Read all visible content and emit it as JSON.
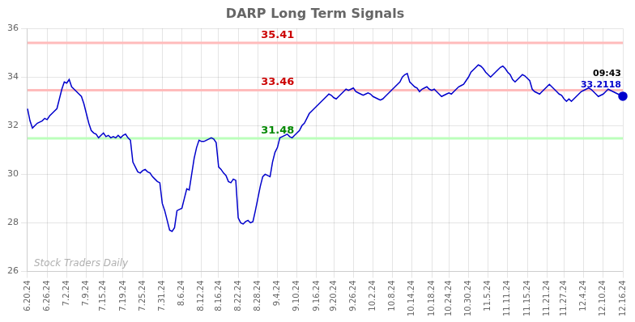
{
  "chart_data": {
    "type": "line",
    "title": "DARP Long Term Signals",
    "categories": [
      "6.20.24",
      null,
      null,
      null,
      null,
      null,
      null,
      null,
      "6.26.24",
      null,
      null,
      null,
      null,
      null,
      null,
      null,
      "7.2.24",
      null,
      null,
      null,
      null,
      null,
      null,
      null,
      "7.9.24",
      null,
      null,
      null,
      null,
      null,
      null,
      "7.15.24",
      null,
      null,
      null,
      null,
      null,
      null,
      null,
      "7.19.24",
      null,
      null,
      null,
      null,
      null,
      null,
      null,
      "7.25.24",
      null,
      null,
      null,
      null,
      null,
      null,
      null,
      "7.31.24",
      null,
      null,
      null,
      null,
      null,
      null,
      null,
      "8.6.24",
      null,
      null,
      null,
      null,
      null,
      null,
      null,
      "8.12.24",
      null,
      null,
      null,
      null,
      null,
      null,
      "8.16.24",
      null,
      null,
      null,
      null,
      null,
      null,
      null,
      "8.22.24",
      null,
      null,
      null,
      null,
      null,
      null,
      null,
      "8.28.24",
      null,
      null,
      null,
      null,
      null,
      null,
      null,
      "9.4.24",
      null,
      null,
      null,
      null,
      null,
      null,
      null,
      "9.10.24",
      null,
      null,
      null,
      null,
      null,
      null,
      null,
      "9.16.24",
      null,
      null,
      null,
      null,
      null,
      null,
      "9.20.24",
      null,
      null,
      null,
      null,
      null,
      null,
      null,
      "9.26.24",
      null,
      null,
      null,
      null,
      null,
      null,
      null,
      "10.2.24",
      null,
      null,
      null,
      null,
      null,
      null,
      null,
      "10.8.24",
      null,
      null,
      null,
      null,
      null,
      null,
      null,
      "10.14.24",
      null,
      null,
      null,
      null,
      null,
      null,
      null,
      "10.18.24",
      null,
      null,
      null,
      null,
      null,
      null,
      "10.24.24",
      null,
      null,
      null,
      null,
      null,
      null,
      null,
      "10.30.24",
      null,
      null,
      null,
      null,
      null,
      null,
      null,
      "11.5.24",
      null,
      null,
      null,
      null,
      null,
      null,
      null,
      "11.11.24",
      null,
      null,
      null,
      null,
      null,
      null,
      null,
      "11.15.24",
      null,
      null,
      null,
      null,
      null,
      null,
      null,
      "11.21.24",
      null,
      null,
      null,
      null,
      null,
      null,
      "11.27.24",
      null,
      null,
      null,
      null,
      null,
      null,
      null,
      "12.4.24",
      null,
      null,
      null,
      null,
      null,
      null,
      null,
      "12.10.24",
      null,
      null,
      null,
      null,
      null,
      null,
      null,
      "12.16.24"
    ],
    "series": [
      {
        "color": "#0000cc",
        "values": [
          32.7,
          32.2,
          31.9,
          32.0,
          32.1,
          32.15,
          32.2,
          32.3,
          32.25,
          32.4,
          32.5,
          32.6,
          32.7,
          33.1,
          33.5,
          33.8,
          33.75,
          33.9,
          33.6,
          33.5,
          33.4,
          33.3,
          33.2,
          32.9,
          32.5,
          32.1,
          31.8,
          31.7,
          31.65,
          31.5,
          31.6,
          31.7,
          31.55,
          31.6,
          31.5,
          31.55,
          31.5,
          31.6,
          31.5,
          31.6,
          31.65,
          31.5,
          31.4,
          30.5,
          30.3,
          30.1,
          30.05,
          30.15,
          30.2,
          30.1,
          30.05,
          29.9,
          29.8,
          29.7,
          29.65,
          28.8,
          28.5,
          28.1,
          27.7,
          27.65,
          27.8,
          28.5,
          28.55,
          28.6,
          29.0,
          29.4,
          29.35,
          30.0,
          30.65,
          31.1,
          31.4,
          31.35,
          31.35,
          31.4,
          31.45,
          31.5,
          31.45,
          31.3,
          30.3,
          30.2,
          30.05,
          29.95,
          29.7,
          29.65,
          29.8,
          29.75,
          28.2,
          28.0,
          27.95,
          28.05,
          28.1,
          28.0,
          28.05,
          28.5,
          29.0,
          29.5,
          29.9,
          30.0,
          29.95,
          29.9,
          30.5,
          30.9,
          31.1,
          31.5,
          31.55,
          31.6,
          31.65,
          31.55,
          31.5,
          31.6,
          31.7,
          31.8,
          32.0,
          32.1,
          32.3,
          32.5,
          32.6,
          32.7,
          32.8,
          32.9,
          33.0,
          33.1,
          33.2,
          33.3,
          33.25,
          33.15,
          33.1,
          33.2,
          33.3,
          33.4,
          33.5,
          33.45,
          33.5,
          33.55,
          33.4,
          33.35,
          33.3,
          33.25,
          33.3,
          33.35,
          33.3,
          33.2,
          33.15,
          33.1,
          33.05,
          33.1,
          33.2,
          33.3,
          33.4,
          33.5,
          33.6,
          33.7,
          33.8,
          34.0,
          34.1,
          34.15,
          33.8,
          33.7,
          33.6,
          33.55,
          33.4,
          33.5,
          33.55,
          33.6,
          33.5,
          33.45,
          33.5,
          33.4,
          33.3,
          33.2,
          33.25,
          33.3,
          33.35,
          33.3,
          33.4,
          33.5,
          33.6,
          33.65,
          33.7,
          33.85,
          34.0,
          34.2,
          34.3,
          34.4,
          34.5,
          34.45,
          34.35,
          34.2,
          34.1,
          34.0,
          34.1,
          34.2,
          34.3,
          34.4,
          34.45,
          34.35,
          34.2,
          34.1,
          33.9,
          33.8,
          33.9,
          34.0,
          34.1,
          34.05,
          33.95,
          33.85,
          33.5,
          33.4,
          33.35,
          33.3,
          33.4,
          33.5,
          33.6,
          33.7,
          33.6,
          33.5,
          33.4,
          33.3,
          33.25,
          33.1,
          33.0,
          33.1,
          33.0,
          33.1,
          33.2,
          33.3,
          33.4,
          33.45,
          33.5,
          33.55,
          33.5,
          33.4,
          33.3,
          33.2,
          33.25,
          33.3,
          33.4,
          33.5,
          33.45,
          33.4,
          33.35,
          33.3,
          33.25,
          33.2118
        ]
      }
    ],
    "ylim": [
      26,
      36
    ],
    "yticks": [
      26,
      28,
      30,
      32,
      34,
      36
    ],
    "grid": true,
    "hlines": [
      {
        "value": 35.41,
        "label": "35.41",
        "color": "#ffbbbb",
        "label_color": "#cc0000"
      },
      {
        "value": 33.46,
        "label": "33.46",
        "color": "#ffbbbb",
        "label_color": "#cc0000"
      },
      {
        "value": 31.48,
        "label": "31.48",
        "color": "#bbffbb",
        "label_color": "#008800"
      }
    ],
    "last_point": {
      "color": "#0000cc",
      "labels": [
        {
          "text": "09:43",
          "color": "#000000"
        },
        {
          "text": "33.2118",
          "color": "#0000cc"
        }
      ]
    },
    "watermark": {
      "text": "Stock Traders Daily",
      "color": "#b0b0b0"
    }
  }
}
